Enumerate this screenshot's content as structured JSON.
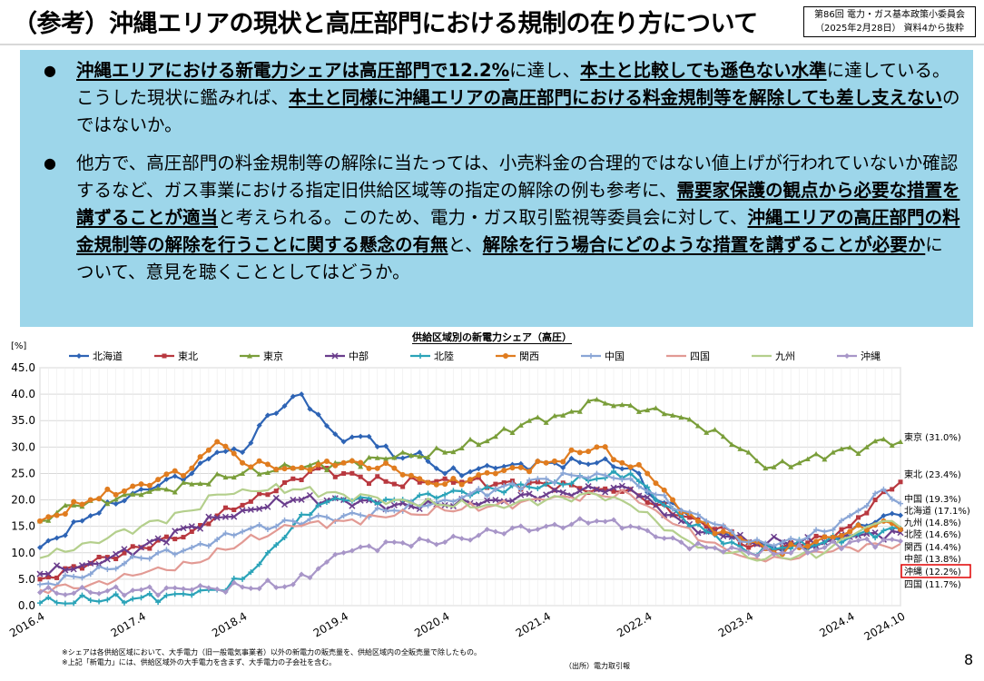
{
  "header": {
    "title": "（参考）沖縄エリアの現状と高圧部門における規制の在り方について",
    "source_line1": "第86回 電力・ガス基本政策小委員会",
    "source_line2": "（2025年2月28日） 資料4から抜粋"
  },
  "bullets": [
    {
      "segments": [
        {
          "text": "沖縄エリアにおける新電力シェアは高圧部門で12.2%",
          "bold": true,
          "underline": true
        },
        {
          "text": "に達し、",
          "bold": false,
          "underline": false
        },
        {
          "text": "本土と比較しても遜色ない水準",
          "bold": true,
          "underline": true
        },
        {
          "text": "に達している。こうした現状に鑑みれば、",
          "bold": false,
          "underline": false
        },
        {
          "text": "本土と同様に沖縄エリアの高圧部門における料金規制等を解除しても差し支えない",
          "bold": true,
          "underline": true
        },
        {
          "text": "のではないか。",
          "bold": false,
          "underline": false
        }
      ]
    },
    {
      "segments": [
        {
          "text": "他方で、高圧部門の料金規制等の解除に当たっては、小売料金の合理的ではない値上げが行われていないか確認するなど、ガス事業における指定旧供給区域等の指定の解除の例も参考に、",
          "bold": false,
          "underline": false
        },
        {
          "text": "需要家保護の観点から必要な措置を講ずることが適当",
          "bold": true,
          "underline": true
        },
        {
          "text": "と考えられる。このため、電力・ガス取引監視等委員会に対して、",
          "bold": false,
          "underline": false
        },
        {
          "text": "沖縄エリアの高圧部門の料金規制等の解除を行うことに関する懸念の有無",
          "bold": true,
          "underline": true
        },
        {
          "text": "と、",
          "bold": false,
          "underline": false
        },
        {
          "text": "解除を行う場合にどのような措置を講ずることが必要か",
          "bold": true,
          "underline": true
        },
        {
          "text": "について、意見を聴くこととしてはどうか。",
          "bold": false,
          "underline": false
        }
      ]
    }
  ],
  "chart_data": {
    "type": "line",
    "title": "供給区域別の新電力シェア（高圧）",
    "ylabel": "[%]",
    "xlabel": "",
    "ylim": [
      0,
      45
    ],
    "yticks": [
      "0.0",
      "5.0",
      "10.0",
      "15.0",
      "20.0",
      "25.0",
      "30.0",
      "35.0",
      "40.0",
      "45.0"
    ],
    "grid": true,
    "legend_position": "top",
    "x_start": "2016.4",
    "x_end": "2024.10",
    "xtick_labels": [
      "2016.4",
      "2017.4",
      "2018.4",
      "2019.4",
      "2020.4",
      "2021.4",
      "2022.4",
      "2023.4",
      "2024.4",
      "2024.10"
    ],
    "highlight_series": "沖縄",
    "series": [
      {
        "name": "北海道",
        "color": "#2e64b5",
        "marker": "diamond",
        "end_label": "北海道 (17.1%)",
        "keypoints": [
          [
            "2016.4",
            11
          ],
          [
            "2016.10",
            17
          ],
          [
            "2017.4",
            22
          ],
          [
            "2017.10",
            25
          ],
          [
            "2018.1",
            29
          ],
          [
            "2018.4",
            29
          ],
          [
            "2018.7",
            36
          ],
          [
            "2018.11",
            40
          ],
          [
            "2019.2",
            34
          ],
          [
            "2019.4",
            31
          ],
          [
            "2019.7",
            32
          ],
          [
            "2019.10",
            28
          ],
          [
            "2020.1",
            29
          ],
          [
            "2020.4",
            25
          ],
          [
            "2020.10",
            26
          ],
          [
            "2021.4",
            27
          ],
          [
            "2021.10",
            27
          ],
          [
            "2022.2",
            26
          ],
          [
            "2022.5",
            20
          ],
          [
            "2022.8",
            18
          ],
          [
            "2022.11",
            15
          ],
          [
            "2023.2",
            13
          ],
          [
            "2023.4",
            12
          ],
          [
            "2023.7",
            11
          ],
          [
            "2023.10",
            11
          ],
          [
            "2024.1",
            12
          ],
          [
            "2024.4",
            14
          ],
          [
            "2024.8",
            17
          ],
          [
            "2024.10",
            17.1
          ]
        ]
      },
      {
        "name": "東北",
        "color": "#b8383f",
        "marker": "square",
        "end_label": "東北 (23.4%)",
        "keypoints": [
          [
            "2016.4",
            5
          ],
          [
            "2016.10",
            8
          ],
          [
            "2017.4",
            11
          ],
          [
            "2017.10",
            14
          ],
          [
            "2018.1",
            17
          ],
          [
            "2018.4",
            19
          ],
          [
            "2018.7",
            21
          ],
          [
            "2018.10",
            24
          ],
          [
            "2019.1",
            26
          ],
          [
            "2019.4",
            25
          ],
          [
            "2019.10",
            23
          ],
          [
            "2020.4",
            24
          ],
          [
            "2020.10",
            23
          ],
          [
            "2021.4",
            23
          ],
          [
            "2021.10",
            22
          ],
          [
            "2022.2",
            22
          ],
          [
            "2022.5",
            19
          ],
          [
            "2022.8",
            17
          ],
          [
            "2022.11",
            15
          ],
          [
            "2023.2",
            14
          ],
          [
            "2023.4",
            11
          ],
          [
            "2023.8",
            11
          ],
          [
            "2024.1",
            13
          ],
          [
            "2024.4",
            15
          ],
          [
            "2024.7",
            20
          ],
          [
            "2024.10",
            23.4
          ]
        ]
      },
      {
        "name": "東京",
        "color": "#7a9e3a",
        "marker": "triangle",
        "end_label": "東京 (31.0%)",
        "keypoints": [
          [
            "2016.4",
            16
          ],
          [
            "2016.8",
            19
          ],
          [
            "2017.4",
            21
          ],
          [
            "2017.10",
            23
          ],
          [
            "2018.4",
            25
          ],
          [
            "2018.10",
            26
          ],
          [
            "2019.4",
            27
          ],
          [
            "2019.10",
            28
          ],
          [
            "2020.4",
            29
          ],
          [
            "2020.10",
            32
          ],
          [
            "2021.2",
            35
          ],
          [
            "2021.6",
            36
          ],
          [
            "2021.10",
            39
          ],
          [
            "2022.1",
            38
          ],
          [
            "2022.4",
            37
          ],
          [
            "2022.7",
            36
          ],
          [
            "2022.10",
            34
          ],
          [
            "2023.1",
            32
          ],
          [
            "2023.4",
            29
          ],
          [
            "2023.6",
            26
          ],
          [
            "2023.10",
            27
          ],
          [
            "2024.2",
            29
          ],
          [
            "2024.6",
            30
          ],
          [
            "2024.8",
            31.5
          ],
          [
            "2024.10",
            31.0
          ]
        ]
      },
      {
        "name": "中部",
        "color": "#6a3d8c",
        "marker": "x",
        "end_label": "中部 (13.8%)",
        "keypoints": [
          [
            "2016.4",
            6
          ],
          [
            "2016.10",
            8
          ],
          [
            "2017.4",
            11
          ],
          [
            "2017.10",
            15
          ],
          [
            "2018.4",
            18
          ],
          [
            "2018.10",
            20
          ],
          [
            "2019.4",
            20
          ],
          [
            "2019.10",
            19
          ],
          [
            "2020.4",
            19
          ],
          [
            "2020.10",
            20
          ],
          [
            "2021.4",
            21
          ],
          [
            "2021.10",
            22
          ],
          [
            "2022.2",
            22
          ],
          [
            "2022.5",
            19
          ],
          [
            "2022.8",
            16
          ],
          [
            "2022.11",
            14
          ],
          [
            "2023.2",
            13
          ],
          [
            "2023.4",
            12
          ],
          [
            "2023.8",
            12
          ],
          [
            "2024.1",
            12
          ],
          [
            "2024.4",
            13
          ],
          [
            "2024.10",
            13.8
          ]
        ]
      },
      {
        "name": "北陸",
        "color": "#2aa3b8",
        "marker": "star",
        "end_label": "北陸 (14.6%)",
        "keypoints": [
          [
            "2016.4",
            0.5
          ],
          [
            "2016.10",
            1
          ],
          [
            "2017.4",
            1.5
          ],
          [
            "2017.10",
            2
          ],
          [
            "2018.1",
            3
          ],
          [
            "2018.4",
            5
          ],
          [
            "2018.7",
            10
          ],
          [
            "2018.10",
            15
          ],
          [
            "2019.1",
            19
          ],
          [
            "2019.4",
            20
          ],
          [
            "2019.10",
            20
          ],
          [
            "2020.4",
            21
          ],
          [
            "2020.10",
            22
          ],
          [
            "2021.4",
            23
          ],
          [
            "2021.10",
            24
          ],
          [
            "2022.2",
            25
          ],
          [
            "2022.5",
            20
          ],
          [
            "2022.8",
            17
          ],
          [
            "2022.11",
            14
          ],
          [
            "2023.2",
            12
          ],
          [
            "2023.4",
            10
          ],
          [
            "2023.8",
            11
          ],
          [
            "2024.1",
            12
          ],
          [
            "2024.4",
            13
          ],
          [
            "2024.10",
            14.6
          ]
        ]
      },
      {
        "name": "関西",
        "color": "#e07c1f",
        "marker": "circle",
        "end_label": "関西 (14.4%)",
        "keypoints": [
          [
            "2016.4",
            16
          ],
          [
            "2016.10",
            20
          ],
          [
            "2017.4",
            23
          ],
          [
            "2017.10",
            26
          ],
          [
            "2018.1",
            31
          ],
          [
            "2018.4",
            27
          ],
          [
            "2018.10",
            26
          ],
          [
            "2019.4",
            27
          ],
          [
            "2019.10",
            26
          ],
          [
            "2020.1",
            24
          ],
          [
            "2020.4",
            23
          ],
          [
            "2020.10",
            25
          ],
          [
            "2021.4",
            27
          ],
          [
            "2021.10",
            30
          ],
          [
            "2022.1",
            27
          ],
          [
            "2022.4",
            25
          ],
          [
            "2022.7",
            20
          ],
          [
            "2022.10",
            16
          ],
          [
            "2023.1",
            14
          ],
          [
            "2023.4",
            12
          ],
          [
            "2023.7",
            10
          ],
          [
            "2023.10",
            11
          ],
          [
            "2024.1",
            13
          ],
          [
            "2024.4",
            14
          ],
          [
            "2024.8",
            16
          ],
          [
            "2024.10",
            14.4
          ]
        ]
      },
      {
        "name": "中国",
        "color": "#8aa6d6",
        "marker": "plus",
        "end_label": "中国 (19.3%)",
        "keypoints": [
          [
            "2016.4",
            4
          ],
          [
            "2016.10",
            6
          ],
          [
            "2017.4",
            9
          ],
          [
            "2017.10",
            11
          ],
          [
            "2018.4",
            14
          ],
          [
            "2018.10",
            16
          ],
          [
            "2019.4",
            17
          ],
          [
            "2019.10",
            18
          ],
          [
            "2020.4",
            20
          ],
          [
            "2020.10",
            22
          ],
          [
            "2021.4",
            24
          ],
          [
            "2021.10",
            25
          ],
          [
            "2022.2",
            24
          ],
          [
            "2022.5",
            21
          ],
          [
            "2022.8",
            18
          ],
          [
            "2022.11",
            16
          ],
          [
            "2023.2",
            14
          ],
          [
            "2023.4",
            12
          ],
          [
            "2023.8",
            12
          ],
          [
            "2024.1",
            14
          ],
          [
            "2024.4",
            17
          ],
          [
            "2024.8",
            22
          ],
          [
            "2024.10",
            19.3
          ]
        ]
      },
      {
        "name": "四国",
        "color": "#e29a94",
        "marker": "none",
        "end_label": "四国 (11.7%)",
        "keypoints": [
          [
            "2016.4",
            3
          ],
          [
            "2016.10",
            4
          ],
          [
            "2017.4",
            6
          ],
          [
            "2017.10",
            8
          ],
          [
            "2018.4",
            12
          ],
          [
            "2018.10",
            15
          ],
          [
            "2019.4",
            16
          ],
          [
            "2019.10",
            17
          ],
          [
            "2020.4",
            18
          ],
          [
            "2020.10",
            19
          ],
          [
            "2021.4",
            20
          ],
          [
            "2021.10",
            21
          ],
          [
            "2022.2",
            21
          ],
          [
            "2022.5",
            18
          ],
          [
            "2022.8",
            15
          ],
          [
            "2022.11",
            12
          ],
          [
            "2023.2",
            10
          ],
          [
            "2023.4",
            9
          ],
          [
            "2023.8",
            9
          ],
          [
            "2024.1",
            10
          ],
          [
            "2024.4",
            11
          ],
          [
            "2024.10",
            11.7
          ]
        ]
      },
      {
        "name": "九州",
        "color": "#b4cf8c",
        "marker": "none",
        "end_label": "九州 (14.8%)",
        "keypoints": [
          [
            "2016.4",
            9
          ],
          [
            "2016.10",
            12
          ],
          [
            "2017.4",
            15
          ],
          [
            "2017.10",
            18
          ],
          [
            "2018.1",
            21
          ],
          [
            "2018.4",
            22
          ],
          [
            "2018.10",
            22
          ],
          [
            "2019.4",
            21
          ],
          [
            "2019.10",
            20
          ],
          [
            "2020.4",
            19
          ],
          [
            "2020.10",
            19
          ],
          [
            "2021.4",
            20
          ],
          [
            "2021.10",
            21
          ],
          [
            "2022.2",
            19
          ],
          [
            "2022.5",
            16
          ],
          [
            "2022.8",
            13
          ],
          [
            "2022.11",
            11
          ],
          [
            "2023.2",
            10
          ],
          [
            "2023.4",
            9
          ],
          [
            "2023.8",
            9
          ],
          [
            "2024.1",
            10
          ],
          [
            "2024.4",
            13
          ],
          [
            "2024.8",
            16
          ],
          [
            "2024.10",
            14.8
          ]
        ]
      },
      {
        "name": "沖縄",
        "color": "#a896c8",
        "marker": "diamond",
        "end_label": "沖縄 (12.2%)",
        "keypoints": [
          [
            "2016.4",
            2.5
          ],
          [
            "2016.10",
            2.5
          ],
          [
            "2017.4",
            3
          ],
          [
            "2017.10",
            3
          ],
          [
            "2018.4",
            3.5
          ],
          [
            "2018.10",
            4
          ],
          [
            "2019.1",
            7
          ],
          [
            "2019.4",
            10
          ],
          [
            "2019.10",
            12
          ],
          [
            "2020.4",
            12
          ],
          [
            "2020.10",
            14
          ],
          [
            "2021.4",
            15
          ],
          [
            "2021.10",
            16
          ],
          [
            "2022.2",
            15
          ],
          [
            "2022.5",
            13
          ],
          [
            "2022.8",
            12
          ],
          [
            "2022.11",
            11
          ],
          [
            "2023.2",
            11
          ],
          [
            "2023.4",
            10
          ],
          [
            "2023.8",
            10
          ],
          [
            "2024.1",
            11
          ],
          [
            "2024.4",
            12
          ],
          [
            "2024.10",
            12.2
          ]
        ]
      }
    ]
  },
  "notes": {
    "line1": "※シェアは各供給区域において、大手電力（旧一般電気事業者）以外の新電力の販売量を、供給区域内の全販売量で除したもの。",
    "line2": "※上記「新電力」には、供給区域外の大手電力を含まず、大手電力の子会社を含む。",
    "source": "（出所）電力取引報"
  },
  "page_number": "8"
}
